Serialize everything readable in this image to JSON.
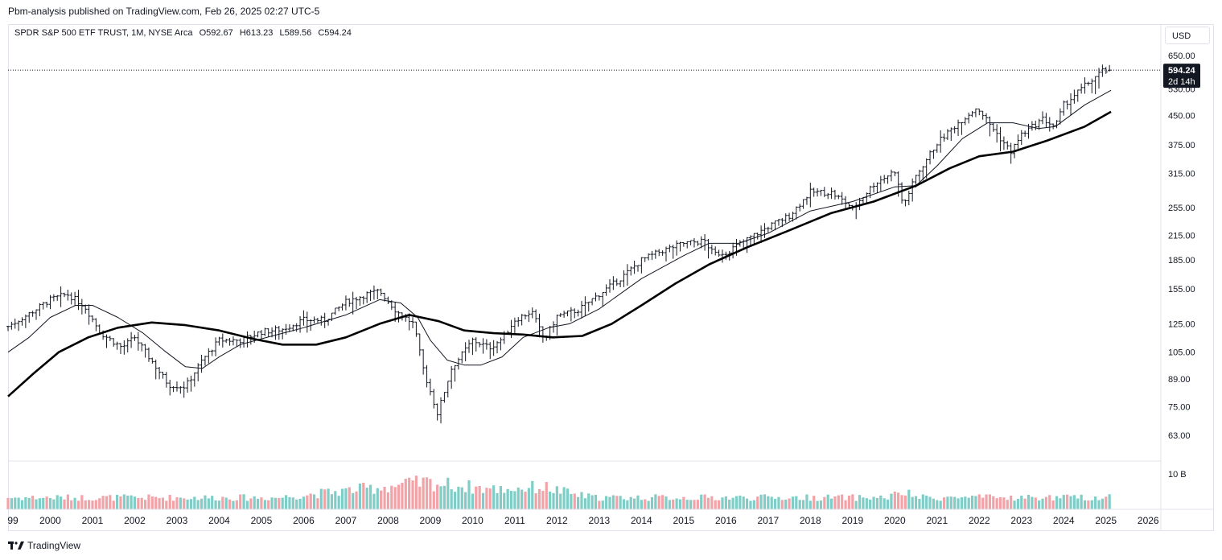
{
  "header": {
    "published_text": "Pbm-analysis published on TradingView.com, Feb 26, 2025 02:27 UTC-5"
  },
  "legend": {
    "symbol": "SPDR S&P 500 ETF TRUST, 1M, NYSE Arca",
    "open": "O592.67",
    "high": "H613.23",
    "low": "L589.56",
    "close": "C594.24"
  },
  "price_axis": {
    "currency": "USD",
    "last_price_label": "594.24",
    "countdown_label": "2d 14h",
    "volume_label": "10 B"
  },
  "footer": {
    "brand": "TradingView"
  },
  "colors": {
    "up_volume": "#7fcdc6",
    "down_volume": "#f2a3a8",
    "candle": "#131722",
    "ma_thin": "#131722",
    "ma_thick": "#000000",
    "price_tag_bg": "#131722"
  },
  "chart_data": {
    "type": "ohlc",
    "interval": "1M",
    "y_scale": "log",
    "y_ticks": [
      63,
      75,
      89,
      105,
      125,
      155,
      185,
      215,
      255,
      315,
      375,
      450,
      530,
      650
    ],
    "y_tick_labels": [
      "63.00",
      "75.00",
      "89.00",
      "105.00",
      "125.00",
      "155.00",
      "185.00",
      "215.00",
      "255.00",
      "315.00",
      "375.00",
      "450.00",
      "530.00",
      "650.00"
    ],
    "x_tick_labels": [
      "99",
      "2000",
      "2001",
      "2002",
      "2003",
      "2004",
      "2005",
      "2006",
      "2007",
      "2008",
      "2009",
      "2010",
      "2011",
      "2012",
      "2013",
      "2014",
      "2015",
      "2016",
      "2017",
      "2018",
      "2019",
      "2020",
      "2021",
      "2022",
      "2023",
      "2024",
      "2025",
      "2026"
    ],
    "x_range_years": [
      1999.0,
      2026.3
    ],
    "last_bar": {
      "date": "2025-02",
      "open": 592.67,
      "high": 613.23,
      "low": 589.56,
      "close": 594.24
    },
    "price_anchors": [
      [
        1999.0,
        123
      ],
      [
        1999.5,
        133
      ],
      [
        2000.0,
        145
      ],
      [
        2000.4,
        150
      ],
      [
        2000.8,
        140
      ],
      [
        2001.2,
        118
      ],
      [
        2001.7,
        108
      ],
      [
        2002.0,
        115
      ],
      [
        2002.5,
        96
      ],
      [
        2002.8,
        86
      ],
      [
        2003.2,
        85
      ],
      [
        2003.6,
        100
      ],
      [
        2004.0,
        113
      ],
      [
        2004.5,
        113
      ],
      [
        2005.0,
        119
      ],
      [
        2005.5,
        121
      ],
      [
        2006.0,
        128
      ],
      [
        2006.5,
        128
      ],
      [
        2007.0,
        143
      ],
      [
        2007.5,
        150
      ],
      [
        2007.8,
        153
      ],
      [
        2008.2,
        135
      ],
      [
        2008.6,
        125
      ],
      [
        2008.85,
        93
      ],
      [
        2009.17,
        72
      ],
      [
        2009.5,
        95
      ],
      [
        2010.0,
        113
      ],
      [
        2010.4,
        108
      ],
      [
        2010.7,
        114
      ],
      [
        2011.0,
        128
      ],
      [
        2011.4,
        135
      ],
      [
        2011.7,
        113
      ],
      [
        2012.0,
        131
      ],
      [
        2012.5,
        136
      ],
      [
        2013.0,
        150
      ],
      [
        2013.5,
        165
      ],
      [
        2014.0,
        185
      ],
      [
        2014.5,
        196
      ],
      [
        2015.0,
        205
      ],
      [
        2015.5,
        208
      ],
      [
        2015.7,
        192
      ],
      [
        2016.0,
        194
      ],
      [
        2016.5,
        210
      ],
      [
        2017.0,
        227
      ],
      [
        2017.5,
        243
      ],
      [
        2018.0,
        281
      ],
      [
        2018.5,
        280
      ],
      [
        2018.9,
        260
      ],
      [
        2019.0,
        254
      ],
      [
        2019.5,
        295
      ],
      [
        2020.0,
        320
      ],
      [
        2020.2,
        258
      ],
      [
        2020.5,
        310
      ],
      [
        2021.0,
        380
      ],
      [
        2021.5,
        430
      ],
      [
        2021.95,
        474
      ],
      [
        2022.5,
        390
      ],
      [
        2022.75,
        360
      ],
      [
        2023.0,
        400
      ],
      [
        2023.5,
        440
      ],
      [
        2023.8,
        420
      ],
      [
        2024.0,
        480
      ],
      [
        2024.5,
        540
      ],
      [
        2024.9,
        590
      ],
      [
        2025.12,
        594
      ]
    ],
    "series": [
      {
        "name": "",
        "style": "thin moving average",
        "points": [
          [
            1999.0,
            105
          ],
          [
            1999.5,
            115
          ],
          [
            2000.0,
            130
          ],
          [
            2000.6,
            140
          ],
          [
            2001.0,
            140
          ],
          [
            2001.6,
            130
          ],
          [
            2002.2,
            118
          ],
          [
            2002.7,
            106
          ],
          [
            2003.2,
            96
          ],
          [
            2003.6,
            95
          ],
          [
            2004.0,
            102
          ],
          [
            2004.5,
            110
          ],
          [
            2005.0,
            114
          ],
          [
            2006.0,
            122
          ],
          [
            2007.0,
            132
          ],
          [
            2007.8,
            145
          ],
          [
            2008.3,
            142
          ],
          [
            2008.7,
            130
          ],
          [
            2009.0,
            113
          ],
          [
            2009.4,
            100
          ],
          [
            2009.8,
            97
          ],
          [
            2010.2,
            97
          ],
          [
            2010.7,
            102
          ],
          [
            2011.2,
            115
          ],
          [
            2011.8,
            122
          ],
          [
            2012.3,
            125
          ],
          [
            2013.0,
            137
          ],
          [
            2014.0,
            165
          ],
          [
            2015.0,
            190
          ],
          [
            2015.6,
            205
          ],
          [
            2016.3,
            205
          ],
          [
            2017.0,
            218
          ],
          [
            2018.0,
            250
          ],
          [
            2019.0,
            265
          ],
          [
            2020.0,
            290
          ],
          [
            2020.5,
            292
          ],
          [
            2021.0,
            330
          ],
          [
            2021.6,
            390
          ],
          [
            2022.2,
            430
          ],
          [
            2022.8,
            430
          ],
          [
            2023.4,
            415
          ],
          [
            2023.8,
            420
          ],
          [
            2024.5,
            480
          ],
          [
            2025.12,
            525
          ]
        ]
      },
      {
        "name": "",
        "style": "thick moving average",
        "points": [
          [
            1999.0,
            80
          ],
          [
            1999.6,
            92
          ],
          [
            2000.2,
            105
          ],
          [
            2000.9,
            115
          ],
          [
            2001.6,
            122
          ],
          [
            2002.4,
            126
          ],
          [
            2003.2,
            124
          ],
          [
            2004.0,
            120
          ],
          [
            2004.8,
            114
          ],
          [
            2005.5,
            110
          ],
          [
            2006.3,
            110
          ],
          [
            2007.0,
            115
          ],
          [
            2007.8,
            125
          ],
          [
            2008.5,
            132
          ],
          [
            2009.2,
            127
          ],
          [
            2009.8,
            120
          ],
          [
            2010.5,
            118
          ],
          [
            2011.2,
            117
          ],
          [
            2011.9,
            115
          ],
          [
            2012.6,
            116
          ],
          [
            2013.3,
            125
          ],
          [
            2014.0,
            140
          ],
          [
            2014.8,
            160
          ],
          [
            2015.6,
            180
          ],
          [
            2016.5,
            200
          ],
          [
            2017.5,
            222
          ],
          [
            2018.5,
            247
          ],
          [
            2019.5,
            265
          ],
          [
            2020.5,
            292
          ],
          [
            2021.3,
            325
          ],
          [
            2022.0,
            350
          ],
          [
            2022.8,
            360
          ],
          [
            2023.6,
            385
          ],
          [
            2024.5,
            420
          ],
          [
            2025.12,
            460
          ]
        ]
      }
    ],
    "volume_notes": "monthly volume bars; peak around late 2008 near the 10 B gridline"
  }
}
